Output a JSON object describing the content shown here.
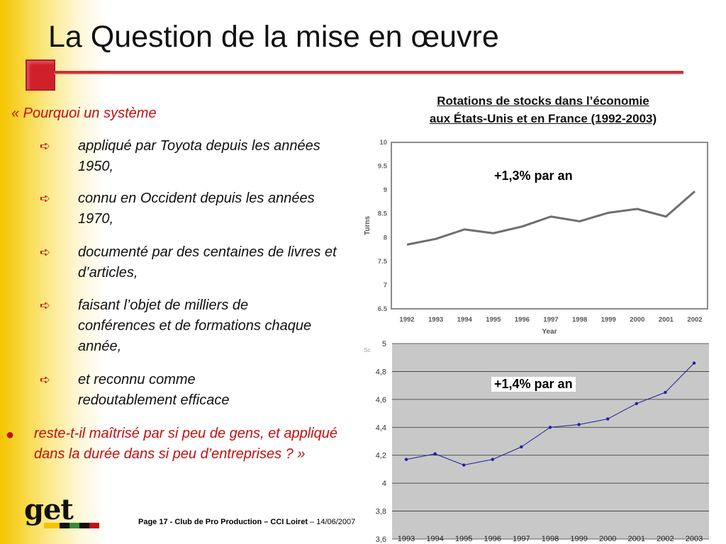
{
  "slide": {
    "title": "La Question de la mise en œuvre",
    "intro": "« Pourquoi un système",
    "sub_bullets": [
      "appliqué par Toyota depuis les années 1950,",
      "connu en Occident depuis les années 1970,",
      "documenté par des centaines de livres et d’articles,",
      "faisant l’objet de milliers de conférences et de formations chaque année,",
      "et reconnu comme redoutablement efficace"
    ],
    "main_bullet": "reste-t-il maîtrisé par si peu de gens, et appliqué dans la durée dans si peu d’entreprises ? »",
    "chart_heading_line1": "Rotations de stocks dans l’économie",
    "chart_heading_line2": "aux États-Unis et en France (1992-2003)",
    "label_us": "+1,3% par an",
    "label_fr": "+1,4% par an",
    "logo_text": "get",
    "footer_bold": "Page 17 - Club de Pro Production – CCI Loiret",
    "footer_date": " – 14/06/2007",
    "colors": {
      "accent_red": "#c01010",
      "rule_red": "#d63a3a",
      "band_yellow": "#f5c400",
      "line_gray": "#6e6e6e",
      "line_blue": "#1f1f9e",
      "plot_gray": "#c8c8c8"
    },
    "icons": [
      "arrow-bullet-icon",
      "dot-bullet-icon"
    ]
  },
  "chart_data": [
    {
      "type": "line",
      "x": [
        "1992",
        "1993",
        "1994",
        "1995",
        "1996",
        "1997",
        "1998",
        "1999",
        "2000",
        "2001",
        "2002"
      ],
      "series": [
        {
          "values": [
            7.85,
            7.97,
            8.17,
            8.09,
            8.23,
            8.44,
            8.34,
            8.52,
            8.6,
            8.44,
            8.97
          ]
        }
      ],
      "xlabel": "Year",
      "ylabel": "Turns",
      "yticks": [
        "6.5",
        "7",
        "7.5",
        "8",
        "8.5",
        "9",
        "9.5",
        "10"
      ],
      "ylim": [
        6.5,
        10
      ],
      "grid": false
    },
    {
      "type": "line",
      "x": [
        "1993",
        "1994",
        "1995",
        "1996",
        "1997",
        "1998",
        "1999",
        "2000",
        "2001",
        "2002",
        "2003"
      ],
      "series": [
        {
          "values": [
            4.17,
            4.21,
            4.13,
            4.17,
            4.26,
            4.4,
            4.42,
            4.46,
            4.57,
            4.65,
            4.86
          ]
        }
      ],
      "yticks": [
        "3,6",
        "3,8",
        "4",
        "4,2",
        "4,4",
        "4,6",
        "4,8",
        "5"
      ],
      "ylim": [
        3.6,
        5
      ],
      "grid": true,
      "markers": true,
      "partial_label": "Sc"
    }
  ]
}
